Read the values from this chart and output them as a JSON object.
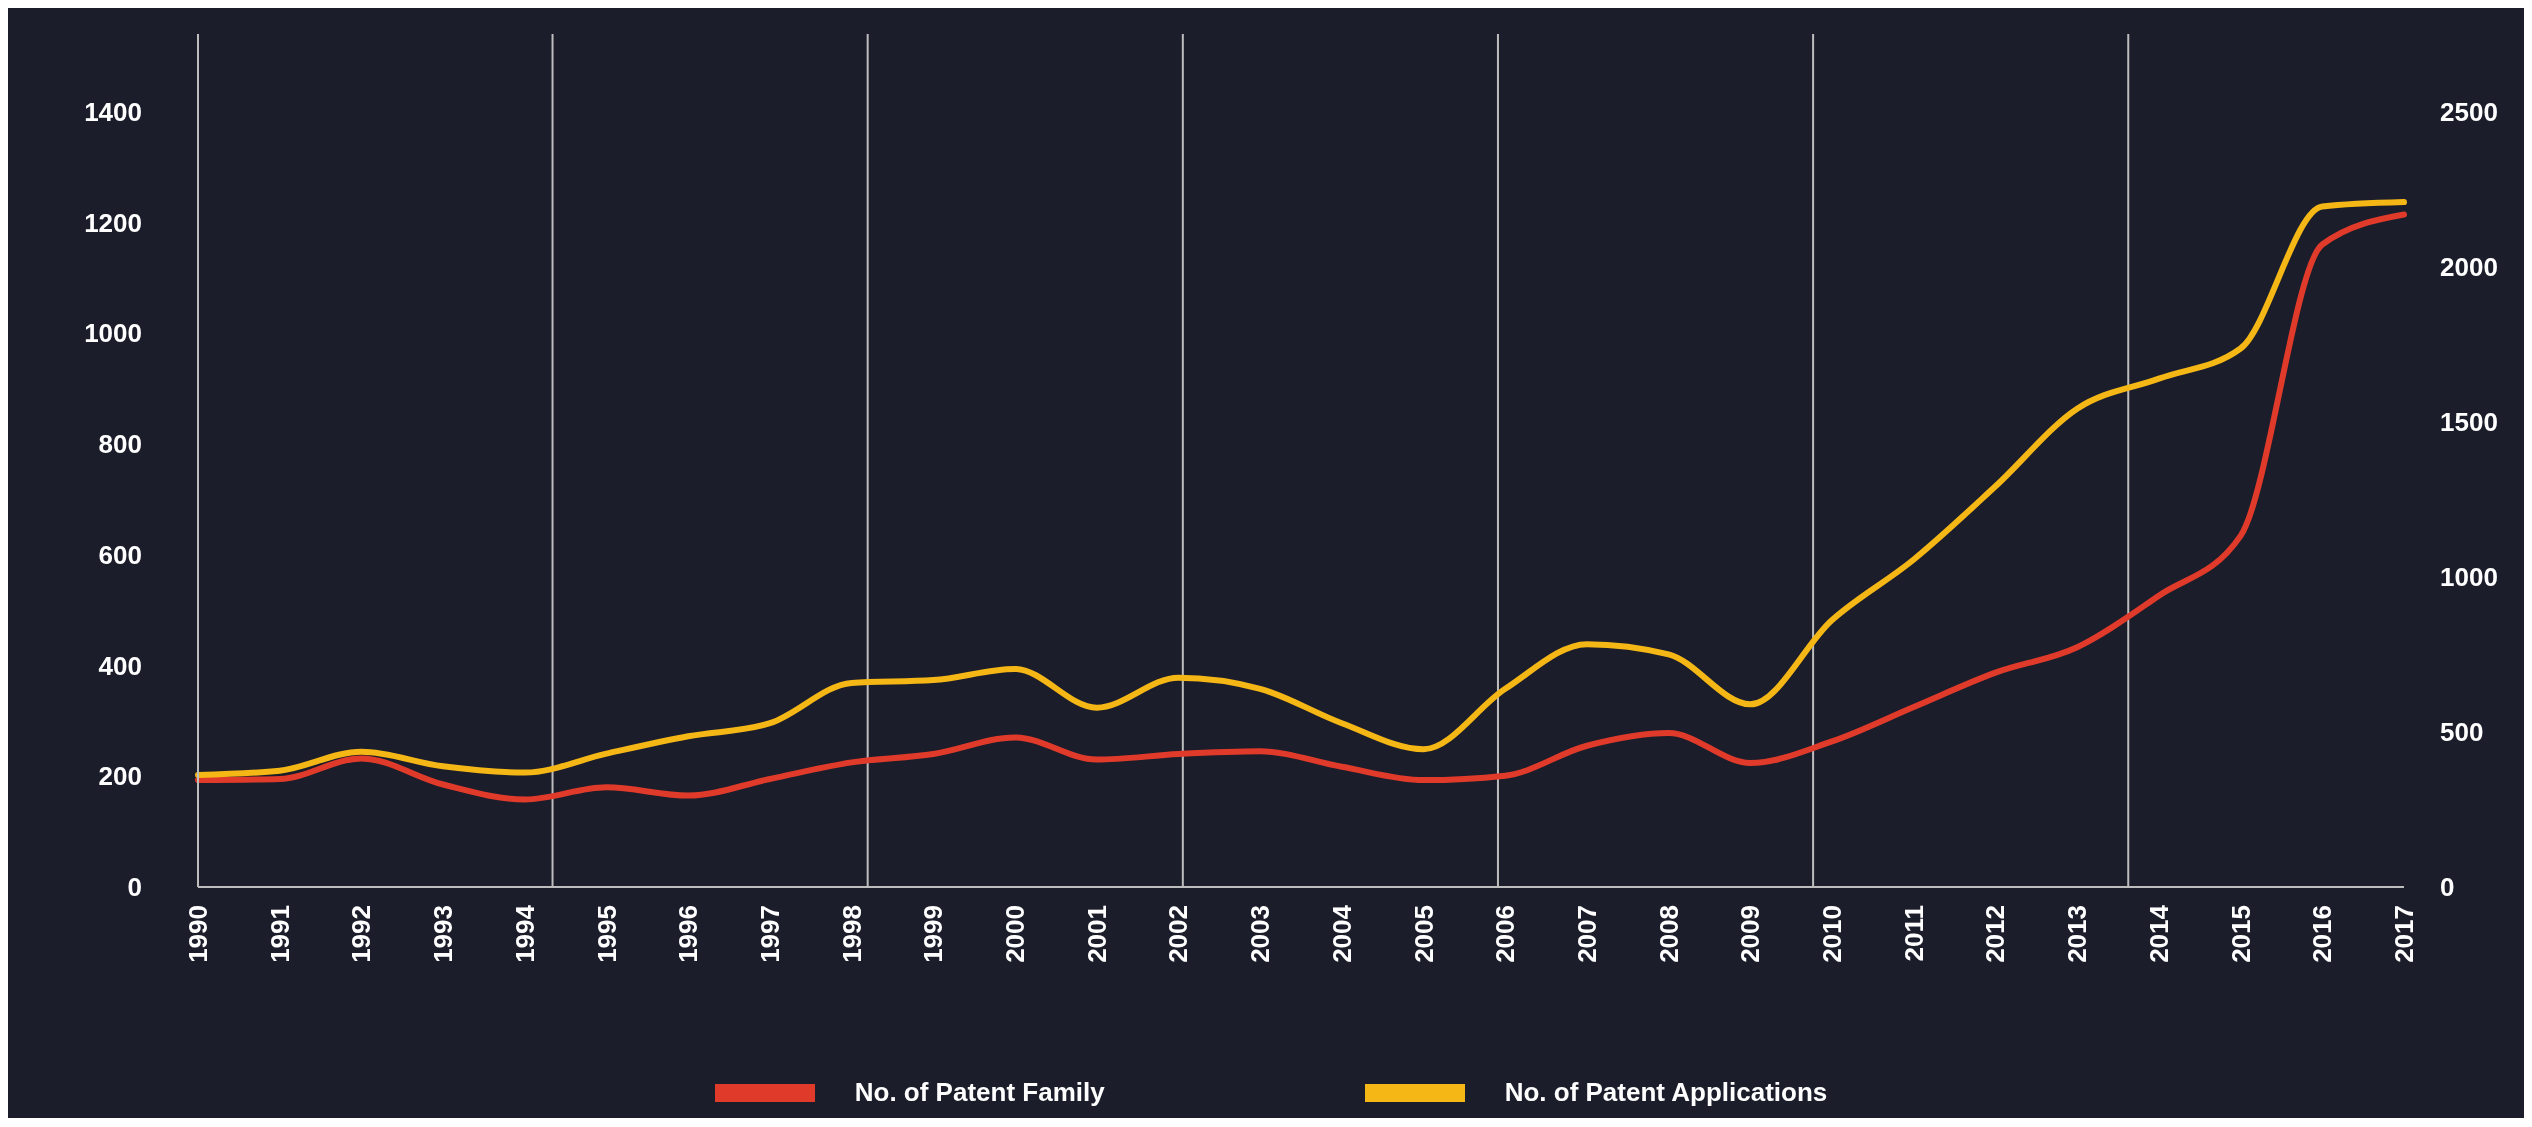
{
  "chart_data": {
    "type": "line",
    "categories": [
      "1990",
      "1991",
      "1992",
      "1993",
      "1994",
      "1995",
      "1996",
      "1997",
      "1998",
      "1999",
      "2000",
      "2001",
      "2002",
      "2003",
      "2004",
      "2005",
      "2006",
      "2007",
      "2008",
      "2009",
      "2010",
      "2011",
      "2012",
      "2013",
      "2014",
      "2015",
      "2016",
      "2017"
    ],
    "series": [
      {
        "name": "No. of Patent Family",
        "color": "#e03a2a",
        "values": [
          193,
          195,
          232,
          185,
          158,
          180,
          165,
          195,
          225,
          240,
          270,
          230,
          240,
          245,
          217,
          193,
          201,
          255,
          278,
          224,
          263,
          325,
          387,
          433,
          526,
          634,
          1160,
          1214
        ]
      },
      {
        "name": "No. of Patent Applications",
        "color": "#f5b715",
        "axis": "y2",
        "values": [
          361,
          375,
          436,
          389,
          369,
          430,
          486,
          528,
          658,
          667,
          703,
          578,
          675,
          639,
          528,
          444,
          639,
          783,
          750,
          589,
          861,
          1056,
          1292,
          1542,
          1639,
          1736,
          2194,
          2208
        ]
      }
    ],
    "ylim": [
      0,
      1540
    ],
    "yticks": [
      0,
      200,
      400,
      600,
      800,
      1000,
      1200,
      1400
    ],
    "y2lim": [
      0,
      2750
    ],
    "y2ticks": [
      0,
      500,
      1000,
      1500,
      2000,
      2500
    ],
    "grid": "x",
    "legend": "bottom",
    "marker": "none",
    "line_style": "solid"
  }
}
